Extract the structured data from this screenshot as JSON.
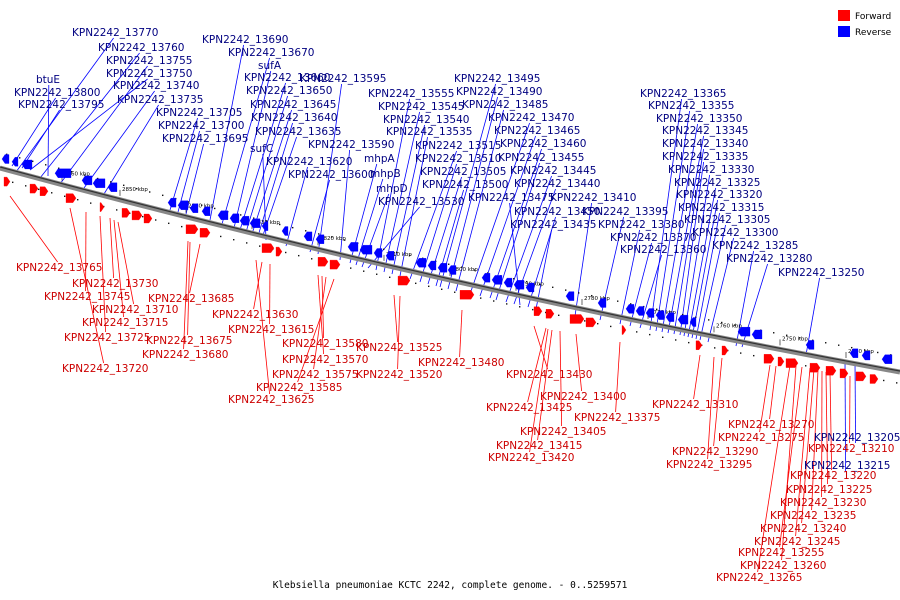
{
  "caption": "Klebsiella pneumoniae KCTC 2242, complete genome. - 0..5259571",
  "legend": [
    {
      "label": "Forward",
      "color": "#ff0000"
    },
    {
      "label": "Reverse",
      "color": "#0000ff"
    }
  ],
  "tick_labels": [
    "2860 kbp",
    "2850 kbp",
    "2840 kbp",
    "2830 kbp",
    "2820 kbp",
    "2810 kbp",
    "2800 kbp",
    "2790 kbp",
    "2780 kbp",
    "2770 kbp",
    "2760 kbp",
    "2750 kbp",
    "2740 kbp"
  ],
  "reverse_labels": [
    "KPN2242_13770",
    "KPN2242_13760",
    "KPN2242_13755",
    "KPN2242_13750",
    "btuE",
    "KPN2242_13740",
    "KPN2242_13800",
    "KPN2242_13735",
    "KPN2242_13795",
    "KPN2242_13705",
    "KPN2242_13700",
    "KPN2242_13695",
    "KPN2242_13690",
    "KPN2242_13670",
    "sufA",
    "KPN2242_13660",
    "KPN2242_13650",
    "KPN2242_13645",
    "KPN2242_13640",
    "KPN2242_13635",
    "sufC",
    "KPN2242_13620",
    "KPN2242_13600",
    "KPN2242_13595",
    "KPN2242_13590",
    "mhpA",
    "mhpB",
    "mhpD",
    "KPN2242_13530",
    "KPN2242_13555",
    "KPN2242_13545",
    "KPN2242_13540",
    "KPN2242_13535",
    "KPN2242_13515",
    "KPN2242_13510",
    "KPN2242_13505",
    "KPN2242_13500",
    "KPN2242_13495",
    "KPN2242_13490",
    "KPN2242_13485",
    "KPN2242_13470",
    "KPN2242_13465",
    "KPN2242_13460",
    "KPN2242_13455",
    "KPN2242_13445",
    "KPN2242_13440",
    "KPN2242_13475",
    "KPN2242_13450",
    "KPN2242_13435",
    "KPN2242_13410",
    "KPN2242_13395",
    "KPN2242_13380",
    "KPN2242_13370",
    "KPN2242_13360",
    "KPN2242_13365",
    "KPN2242_13355",
    "KPN2242_13350",
    "KPN2242_13345",
    "KPN2242_13340",
    "KPN2242_13335",
    "KPN2242_13330",
    "KPN2242_13325",
    "KPN2242_13320",
    "KPN2242_13315",
    "KPN2242_13305",
    "KPN2242_13300",
    "KPN2242_13285",
    "KPN2242_13280",
    "KPN2242_13250",
    "KPN2242_13205",
    "KPN2242_13215"
  ],
  "forward_labels": [
    "KPN2242_13765",
    "KPN2242_13730",
    "KPN2242_13745",
    "KPN2242_13710",
    "KPN2242_13715",
    "KPN2242_13725",
    "KPN2242_13720",
    "KPN2242_13685",
    "KPN2242_13675",
    "KPN2242_13680",
    "KPN2242_13630",
    "KPN2242_13615",
    "KPN2242_13625",
    "KPN2242_13580",
    "KPN2242_13570",
    "KPN2242_13575",
    "KPN2242_13585",
    "KPN2242_13525",
    "KPN2242_13520",
    "KPN2242_13480",
    "KPN2242_13430",
    "KPN2242_13425",
    "KPN2242_13400",
    "KPN2242_13405",
    "KPN2242_13415",
    "KPN2242_13420",
    "KPN2242_13375",
    "KPN2242_13310",
    "KPN2242_13270",
    "KPN2242_13275",
    "KPN2242_13290",
    "KPN2242_13295",
    "KPN2242_13210",
    "KPN2242_13220",
    "KPN2242_13225",
    "KPN2242_13230",
    "KPN2242_13235",
    "KPN2242_13240",
    "KPN2242_13245",
    "KPN2242_13255",
    "KPN2242_13260",
    "KPN2242_13265"
  ]
}
